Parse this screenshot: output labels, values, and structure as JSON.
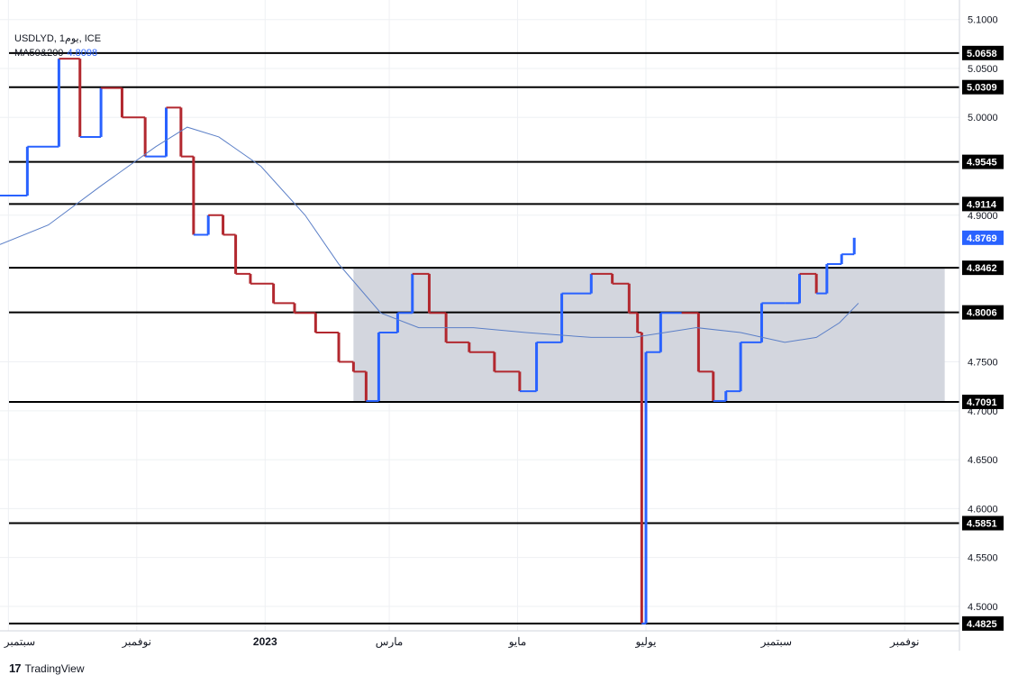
{
  "header": {
    "symbol_line": "USDLYD, 1يوم, ICE",
    "ma_label": "MA50&200",
    "ma_value": "4.8098"
  },
  "brand": {
    "name": "TradingView",
    "logo": "17"
  },
  "colors": {
    "up": "#2962ff",
    "down": "#b2282f",
    "ma": "#5b7fc7",
    "zone": "#d1d4dc",
    "level": "#000000",
    "grid": "#eef0f3",
    "price_label_bg": "#2962ff"
  },
  "chart_data": {
    "type": "candlestick",
    "title": "",
    "ylim": [
      4.475,
      5.12
    ],
    "x_ticks": [
      {
        "label": "سبتمبر",
        "date": "2022-09-01"
      },
      {
        "label": "نوفمبر",
        "date": "2022-11-01"
      },
      {
        "label": "2023",
        "date": "2023-01-01"
      },
      {
        "label": "مارس",
        "date": "2023-03-01"
      },
      {
        "label": "مايو",
        "date": "2023-05-01"
      },
      {
        "label": "يوليو",
        "date": "2023-07-01"
      },
      {
        "label": "سبتمبر",
        "date": "2023-09-01"
      },
      {
        "label": "نوفمبر",
        "date": "2023-11-01"
      }
    ],
    "y_ticks": [
      "5.1000",
      "5.0500",
      "5.0000",
      "4.9000",
      "4.7500",
      "4.7000",
      "4.6500",
      "4.6000",
      "4.5500",
      "4.5000"
    ],
    "levels": [
      "5.0658",
      "5.0309",
      "4.9545",
      "4.9114",
      "4.8462",
      "4.8006",
      "4.7091",
      "4.5851",
      "4.4825"
    ],
    "last_price": "4.8769",
    "zone": {
      "from_date": "2023-02-12",
      "to_date": "2023-11-20",
      "low": 4.7091,
      "high": 4.8462
    },
    "series": [
      {
        "name": "USDLYD",
        "path": [
          [
            "2022-08-28",
            4.92
          ],
          [
            "2022-09-10",
            4.97
          ],
          [
            "2022-09-25",
            5.06
          ],
          [
            "2022-10-05",
            4.98
          ],
          [
            "2022-10-15",
            5.03
          ],
          [
            "2022-10-25",
            5.0
          ],
          [
            "2022-11-05",
            4.96
          ],
          [
            "2022-11-15",
            5.01
          ],
          [
            "2022-11-22",
            4.96
          ],
          [
            "2022-11-28",
            4.88
          ],
          [
            "2022-12-05",
            4.9
          ],
          [
            "2022-12-12",
            4.88
          ],
          [
            "2022-12-18",
            4.84
          ],
          [
            "2022-12-25",
            4.83
          ],
          [
            "2023-01-05",
            4.81
          ],
          [
            "2023-01-15",
            4.8
          ],
          [
            "2023-01-25",
            4.78
          ],
          [
            "2023-02-05",
            4.75
          ],
          [
            "2023-02-12",
            4.74
          ],
          [
            "2023-02-18",
            4.71
          ],
          [
            "2023-02-24",
            4.78
          ],
          [
            "2023-03-05",
            4.8
          ],
          [
            "2023-03-12",
            4.84
          ],
          [
            "2023-03-20",
            4.8
          ],
          [
            "2023-03-28",
            4.77
          ],
          [
            "2023-04-08",
            4.76
          ],
          [
            "2023-04-20",
            4.74
          ],
          [
            "2023-05-02",
            4.72
          ],
          [
            "2023-05-10",
            4.77
          ],
          [
            "2023-05-22",
            4.82
          ],
          [
            "2023-06-05",
            4.84
          ],
          [
            "2023-06-15",
            4.83
          ],
          [
            "2023-06-23",
            4.8
          ],
          [
            "2023-06-27",
            4.78
          ],
          [
            "2023-06-29",
            4.4825
          ],
          [
            "2023-07-01",
            4.76
          ],
          [
            "2023-07-08",
            4.8
          ],
          [
            "2023-07-18",
            4.8
          ],
          [
            "2023-07-26",
            4.74
          ],
          [
            "2023-08-02",
            4.71
          ],
          [
            "2023-08-08",
            4.72
          ],
          [
            "2023-08-15",
            4.77
          ],
          [
            "2023-08-25",
            4.81
          ],
          [
            "2023-09-05",
            4.81
          ],
          [
            "2023-09-12",
            4.84
          ],
          [
            "2023-09-20",
            4.82
          ],
          [
            "2023-09-25",
            4.85
          ],
          [
            "2023-10-02",
            4.86
          ],
          [
            "2023-10-08",
            4.8769
          ]
        ]
      },
      {
        "name": "MA50",
        "path": [
          [
            "2022-08-28",
            4.87
          ],
          [
            "2022-09-20",
            4.89
          ],
          [
            "2022-10-15",
            4.93
          ],
          [
            "2022-11-10",
            4.97
          ],
          [
            "2022-11-25",
            4.99
          ],
          [
            "2022-12-10",
            4.98
          ],
          [
            "2022-12-30",
            4.95
          ],
          [
            "2023-01-20",
            4.9
          ],
          [
            "2023-02-05",
            4.85
          ],
          [
            "2023-02-25",
            4.8
          ],
          [
            "2023-03-15",
            4.785
          ],
          [
            "2023-04-10",
            4.785
          ],
          [
            "2023-05-05",
            4.78
          ],
          [
            "2023-06-05",
            4.775
          ],
          [
            "2023-06-25",
            4.775
          ],
          [
            "2023-07-10",
            4.78
          ],
          [
            "2023-07-25",
            4.785
          ],
          [
            "2023-08-15",
            4.78
          ],
          [
            "2023-09-05",
            4.77
          ],
          [
            "2023-09-20",
            4.775
          ],
          [
            "2023-10-01",
            4.79
          ],
          [
            "2023-10-10",
            4.81
          ]
        ]
      }
    ]
  }
}
